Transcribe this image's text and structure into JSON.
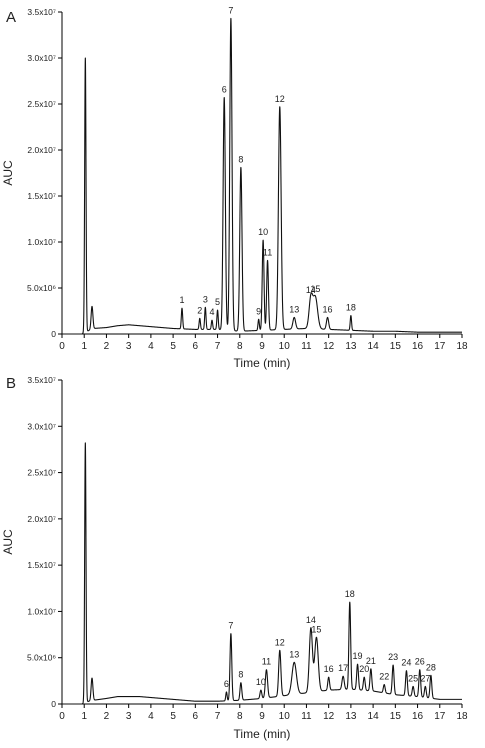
{
  "chart_data": [
    {
      "type": "line",
      "panel_label": "A",
      "xlabel": "Time (min)",
      "ylabel": "AUC",
      "xlim": [
        0,
        18
      ],
      "ylim": [
        0,
        35000000
      ],
      "x_ticks": [
        0,
        1,
        2,
        3,
        4,
        5,
        6,
        7,
        8,
        9,
        10,
        11,
        12,
        13,
        14,
        15,
        16,
        17,
        18
      ],
      "x_tick_labels": [
        "0",
        "1",
        "2",
        "3",
        "4",
        "5",
        "6",
        "7",
        "8",
        "9",
        "10",
        "11",
        "12",
        "13",
        "14",
        "15",
        "16",
        "17",
        "18"
      ],
      "y_ticks": [
        0,
        5000000,
        10000000,
        15000000,
        20000000,
        25000000,
        30000000,
        35000000
      ],
      "y_tick_labels": [
        "0",
        "5.0x10⁶",
        "1.0x10⁷",
        "1.5x10⁷",
        "2.0x10⁷",
        "2.5x10⁷",
        "3.0x10⁷",
        "3.5x10⁷"
      ],
      "baseline": [
        [
          0,
          0
        ],
        [
          0.9,
          0
        ],
        [
          1.05,
          200000
        ],
        [
          1.4,
          600000
        ],
        [
          2.0,
          700000
        ],
        [
          2.5,
          900000
        ],
        [
          3.0,
          1000000
        ],
        [
          3.5,
          900000
        ],
        [
          4.0,
          800000
        ],
        [
          5.0,
          600000
        ],
        [
          6.0,
          500000
        ],
        [
          7.0,
          500000
        ],
        [
          8.0,
          300000
        ],
        [
          9.0,
          400000
        ],
        [
          10.0,
          500000
        ],
        [
          11.0,
          600000
        ],
        [
          12.0,
          500000
        ],
        [
          13.0,
          400000
        ],
        [
          14.0,
          300000
        ],
        [
          15.0,
          300000
        ],
        [
          16.0,
          200000
        ],
        [
          17.0,
          200000
        ],
        [
          18.0,
          200000
        ]
      ],
      "peaks": [
        {
          "x": 1.05,
          "y": 30000000,
          "w": 0.03
        },
        {
          "x": 1.35,
          "y": 3000000,
          "w": 0.04
        },
        {
          "label": "1",
          "x": 5.4,
          "y": 2800000,
          "w": 0.03
        },
        {
          "label": "2",
          "x": 6.2,
          "y": 1700000,
          "w": 0.03
        },
        {
          "label": "3",
          "x": 6.45,
          "y": 2900000,
          "w": 0.03
        },
        {
          "label": "4",
          "x": 6.75,
          "y": 1500000,
          "w": 0.03
        },
        {
          "label": "5",
          "x": 7.0,
          "y": 2600000,
          "w": 0.03
        },
        {
          "label": "6",
          "x": 7.3,
          "y": 25700000,
          "w": 0.05
        },
        {
          "label": "7",
          "x": 7.6,
          "y": 34300000,
          "w": 0.05
        },
        {
          "label": "8",
          "x": 8.05,
          "y": 18100000,
          "w": 0.05
        },
        {
          "label": "9",
          "x": 8.85,
          "y": 1600000,
          "w": 0.03
        },
        {
          "label": "10",
          "x": 9.05,
          "y": 10200000,
          "w": 0.04
        },
        {
          "label": "11",
          "x": 9.25,
          "y": 8000000,
          "w": 0.04
        },
        {
          "label": "12",
          "x": 9.8,
          "y": 24700000,
          "w": 0.06
        },
        {
          "label": "13",
          "x": 10.45,
          "y": 1800000,
          "w": 0.06
        },
        {
          "label": "14",
          "x": 11.2,
          "y": 3900000,
          "w": 0.08
        },
        {
          "label": "15",
          "x": 11.4,
          "y": 4000000,
          "w": 0.1
        },
        {
          "label": "16",
          "x": 11.95,
          "y": 1800000,
          "w": 0.05
        },
        {
          "label": "18",
          "x": 13.0,
          "y": 2000000,
          "w": 0.03
        }
      ]
    },
    {
      "type": "line",
      "panel_label": "B",
      "xlabel": "Time (min)",
      "ylabel": "AUC",
      "xlim": [
        0,
        18
      ],
      "ylim": [
        0,
        35000000
      ],
      "x_ticks": [
        0,
        1,
        2,
        3,
        4,
        5,
        6,
        7,
        8,
        9,
        10,
        11,
        12,
        13,
        14,
        15,
        16,
        17,
        18
      ],
      "x_tick_labels": [
        "0",
        "1",
        "2",
        "3",
        "4",
        "5",
        "6",
        "7",
        "8",
        "9",
        "10",
        "11",
        "12",
        "13",
        "14",
        "15",
        "16",
        "17",
        "18"
      ],
      "y_ticks": [
        0,
        5000000,
        10000000,
        15000000,
        20000000,
        25000000,
        30000000,
        35000000
      ],
      "y_tick_labels": [
        "0",
        "5.0x10⁶",
        "1.0x10⁷",
        "1.5x10⁷",
        "2.0x10⁷",
        "2.5x10⁷",
        "3.0x10⁷",
        "3.5x10⁷"
      ],
      "baseline": [
        [
          0,
          0
        ],
        [
          0.9,
          0
        ],
        [
          1.05,
          200000
        ],
        [
          1.4,
          400000
        ],
        [
          2.0,
          600000
        ],
        [
          2.5,
          800000
        ],
        [
          3.0,
          800000
        ],
        [
          3.5,
          800000
        ],
        [
          4.0,
          700000
        ],
        [
          5.0,
          500000
        ],
        [
          6.0,
          300000
        ],
        [
          7.0,
          300000
        ],
        [
          8.0,
          400000
        ],
        [
          9.0,
          600000
        ],
        [
          10.0,
          900000
        ],
        [
          11.0,
          1200000
        ],
        [
          12.0,
          1500000
        ],
        [
          13.0,
          1600000
        ],
        [
          14.0,
          1400000
        ],
        [
          15.0,
          1000000
        ],
        [
          16.0,
          800000
        ],
        [
          17.0,
          500000
        ],
        [
          18.0,
          500000
        ]
      ],
      "peaks": [
        {
          "x": 1.05,
          "y": 28200000,
          "w": 0.03
        },
        {
          "x": 1.35,
          "y": 2800000,
          "w": 0.04
        },
        {
          "label": "6",
          "x": 7.4,
          "y": 1300000,
          "w": 0.03
        },
        {
          "label": "7",
          "x": 7.6,
          "y": 7600000,
          "w": 0.04
        },
        {
          "label": "8",
          "x": 8.05,
          "y": 2300000,
          "w": 0.04
        },
        {
          "label": "10",
          "x": 8.95,
          "y": 1500000,
          "w": 0.04
        },
        {
          "label": "11",
          "x": 9.2,
          "y": 3700000,
          "w": 0.05
        },
        {
          "label": "12",
          "x": 9.8,
          "y": 5800000,
          "w": 0.05
        },
        {
          "label": "13",
          "x": 10.45,
          "y": 4500000,
          "w": 0.1
        },
        {
          "label": "14",
          "x": 11.2,
          "y": 8200000,
          "w": 0.07
        },
        {
          "label": "15",
          "x": 11.45,
          "y": 7200000,
          "w": 0.08
        },
        {
          "label": "16",
          "x": 12.0,
          "y": 2900000,
          "w": 0.04
        },
        {
          "label": "17",
          "x": 12.65,
          "y": 3000000,
          "w": 0.05
        },
        {
          "label": "18",
          "x": 12.95,
          "y": 11000000,
          "w": 0.04
        },
        {
          "label": "19",
          "x": 13.3,
          "y": 4300000,
          "w": 0.04
        },
        {
          "label": "20",
          "x": 13.6,
          "y": 2900000,
          "w": 0.04
        },
        {
          "label": "21",
          "x": 13.9,
          "y": 3800000,
          "w": 0.04
        },
        {
          "label": "22",
          "x": 14.5,
          "y": 2100000,
          "w": 0.04
        },
        {
          "label": "23",
          "x": 14.9,
          "y": 4200000,
          "w": 0.04
        },
        {
          "label": "24",
          "x": 15.5,
          "y": 3600000,
          "w": 0.04
        },
        {
          "label": "25",
          "x": 15.8,
          "y": 1900000,
          "w": 0.04
        },
        {
          "label": "26",
          "x": 16.1,
          "y": 3700000,
          "w": 0.04
        },
        {
          "label": "27",
          "x": 16.35,
          "y": 1900000,
          "w": 0.04
        },
        {
          "label": "28",
          "x": 16.6,
          "y": 3100000,
          "w": 0.04
        }
      ]
    }
  ]
}
